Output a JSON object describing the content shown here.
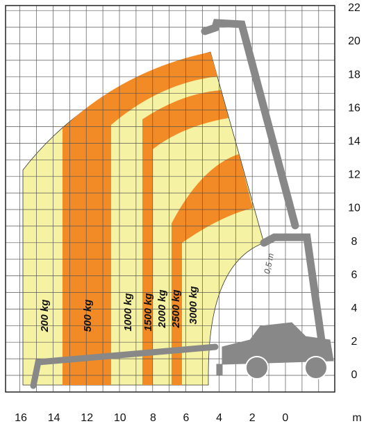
{
  "y_axis": {
    "labels": [
      0,
      2,
      4,
      6,
      8,
      10,
      12,
      14,
      16,
      18,
      20,
      22
    ]
  },
  "x_axis": {
    "labels": [
      16,
      14,
      12,
      10,
      8,
      6,
      4,
      2,
      0
    ],
    "unit": "m"
  },
  "zones": [
    "200 kg",
    "500 kg",
    "1000 kg",
    "1500 kg",
    "2000 kg",
    "2500 kg",
    "3000 kg"
  ],
  "annotation": "0,5 m"
}
